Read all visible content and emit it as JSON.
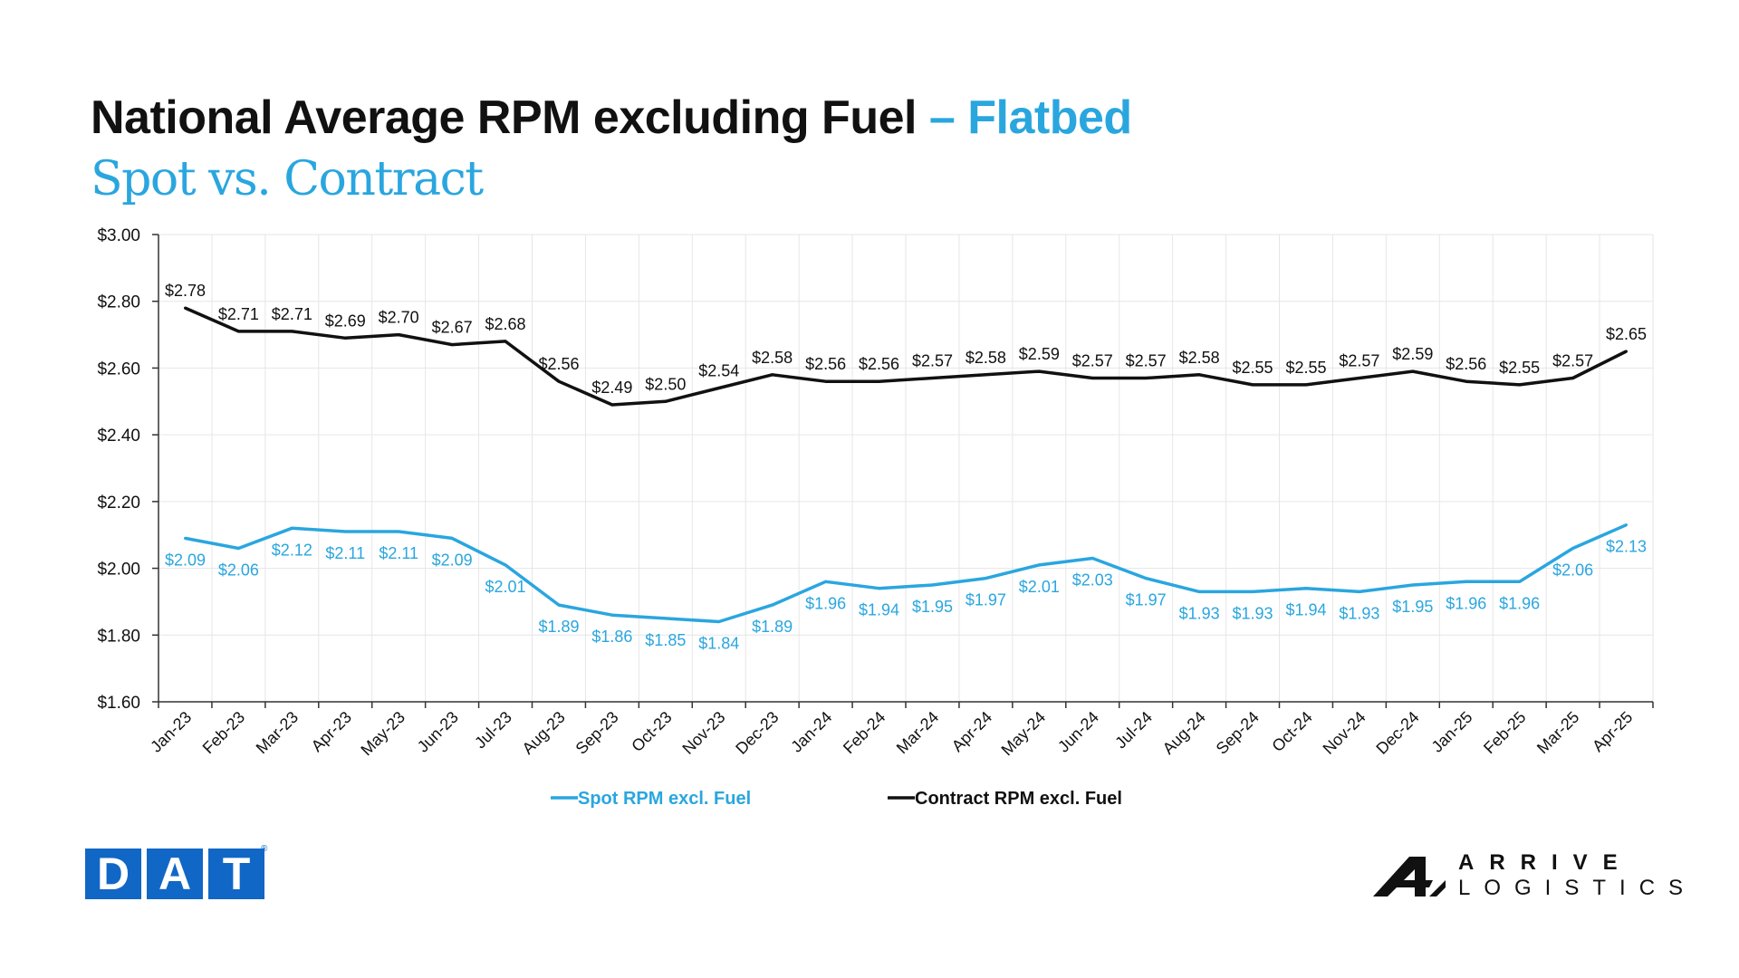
{
  "header": {
    "title_main": "National Average RPM excluding Fuel",
    "title_accent": "– Flatbed",
    "subtitle": "Spot vs. Contract"
  },
  "logos": {
    "left": [
      "D",
      "A",
      "T"
    ],
    "left_registered": "®",
    "right_line1": "ARRIVE",
    "right_line2": "LOGISTICS"
  },
  "colors": {
    "spot": "#2aa6df",
    "contract": "#111111",
    "grid": "#e6e6e6",
    "axis": "#333333"
  },
  "chart_data": {
    "type": "line",
    "categories": [
      "Jan-23",
      "Feb-23",
      "Mar-23",
      "Apr-23",
      "May-23",
      "Jun-23",
      "Jul-23",
      "Aug-23",
      "Sep-23",
      "Oct-23",
      "Nov-23",
      "Dec-23",
      "Jan-24",
      "Feb-24",
      "Mar-24",
      "Apr-24",
      "May-24",
      "Jun-24",
      "Jul-24",
      "Aug-24",
      "Sep-24",
      "Oct-24",
      "Nov-24",
      "Dec-24",
      "Jan-25",
      "Feb-25",
      "Mar-25",
      "Apr-25"
    ],
    "series": [
      {
        "name": "Spot RPM excl. Fuel",
        "values": [
          2.09,
          2.06,
          2.12,
          2.11,
          2.11,
          2.09,
          2.01,
          1.89,
          1.86,
          1.85,
          1.84,
          1.89,
          1.96,
          1.94,
          1.95,
          1.97,
          2.01,
          2.03,
          1.97,
          1.93,
          1.93,
          1.94,
          1.93,
          1.95,
          1.96,
          1.96,
          2.06,
          2.13
        ],
        "labels": [
          "$2.09",
          "$2.06",
          "$2.12",
          "$2.11",
          "$2.11",
          "$2.09",
          "$2.01",
          "$1.89",
          "$1.86",
          "$1.85",
          "$1.84",
          "$1.89",
          "$1.96",
          "$1.94",
          "$1.95",
          "$1.97",
          "$2.01",
          "$2.03",
          "$1.97",
          "$1.93",
          "$1.93",
          "$1.94",
          "$1.93",
          "$1.95",
          "$1.96",
          "$1.96",
          "$2.06",
          "$2.13"
        ]
      },
      {
        "name": "Contract RPM excl. Fuel",
        "values": [
          2.78,
          2.71,
          2.71,
          2.69,
          2.7,
          2.67,
          2.68,
          2.56,
          2.49,
          2.5,
          2.54,
          2.58,
          2.56,
          2.56,
          2.57,
          2.58,
          2.59,
          2.57,
          2.57,
          2.58,
          2.55,
          2.55,
          2.57,
          2.59,
          2.56,
          2.55,
          2.57,
          2.65
        ],
        "labels": [
          "$2.78",
          "$2.71",
          "$2.71",
          "$2.69",
          "$2.70",
          "$2.67",
          "$2.68",
          "$2.56",
          "$2.49",
          "$2.50",
          "$2.54",
          "$2.58",
          "$2.56",
          "$2.56",
          "$2.57",
          "$2.58",
          "$2.59",
          "$2.57",
          "$2.57",
          "$2.58",
          "$2.55",
          "$2.55",
          "$2.57",
          "$2.59",
          "$2.56",
          "$2.55",
          "$2.57",
          "$2.65"
        ]
      }
    ],
    "yticks": [
      1.6,
      1.8,
      2.0,
      2.2,
      2.4,
      2.6,
      2.8,
      3.0
    ],
    "ytick_labels": [
      "$1.60",
      "$1.80",
      "$2.00",
      "$2.20",
      "$2.40",
      "$2.60",
      "$2.80",
      "$3.00"
    ],
    "ylim": [
      1.6,
      3.0
    ],
    "grid": true,
    "legend_position": "bottom"
  }
}
